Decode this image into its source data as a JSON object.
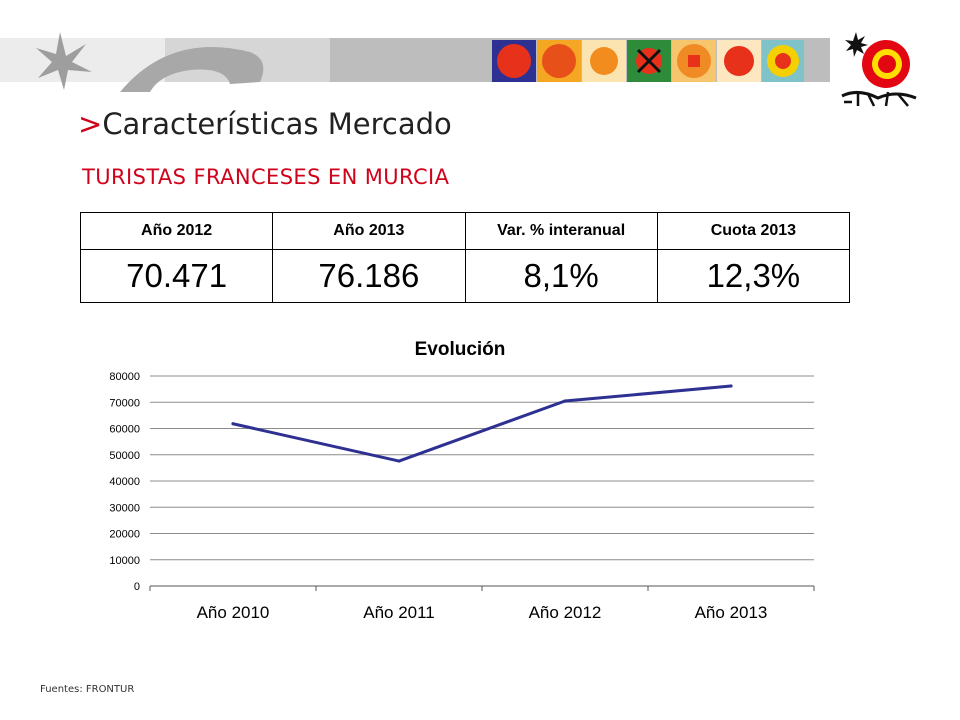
{
  "header": {
    "title_marker": ">",
    "title": "Características Mercado",
    "subtitle": "TURISTAS FRANCESES EN MURCIA",
    "logo_text": "ESPAÑA"
  },
  "colors": {
    "accent_red": "#d0021b",
    "series_line": "#2e3192",
    "header_band": "#bdbdbd"
  },
  "table": {
    "headers": [
      "Año 2012",
      "Año 2013",
      "Var. % interanual",
      "Cuota 2013"
    ],
    "values": [
      "70.471",
      "76.186",
      "8,1%",
      "12,3%"
    ]
  },
  "chart_data": {
    "type": "line",
    "title": "Evolución",
    "categories": [
      "Año 2010",
      "Año 2011",
      "Año 2012",
      "Año 2013"
    ],
    "series": [
      {
        "values": [
          61800,
          47600,
          70471,
          76186
        ]
      }
    ],
    "ylim": [
      0,
      80000
    ],
    "yticks": [
      0,
      10000,
      20000,
      30000,
      40000,
      50000,
      60000,
      70000,
      80000
    ],
    "grid": true,
    "legend": "none",
    "xlabel": "",
    "ylabel": ""
  },
  "footer": {
    "source": "Fuentes: FRONTUR"
  }
}
